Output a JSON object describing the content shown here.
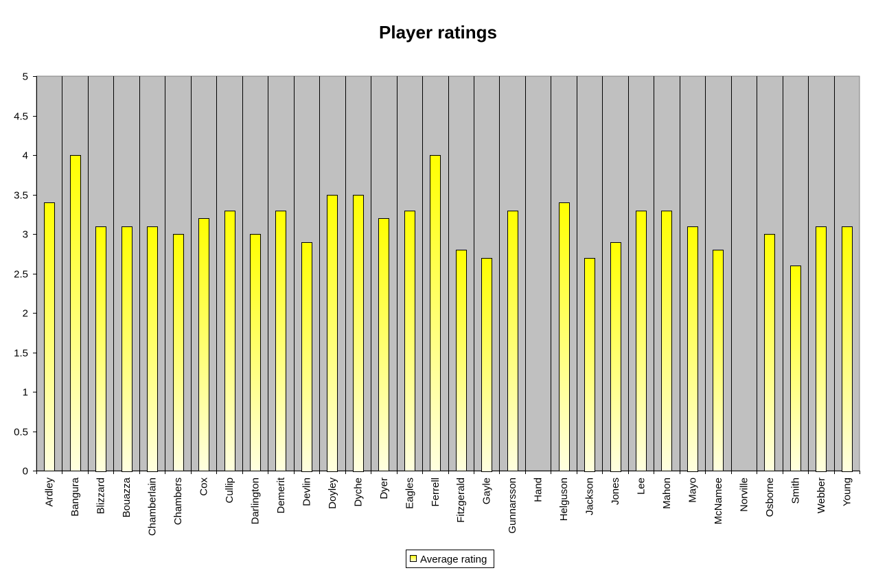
{
  "chart_data": {
    "type": "bar",
    "title": "Player ratings",
    "xlabel": "",
    "ylabel": "",
    "ylim": [
      0,
      5
    ],
    "ytick_step": 0.5,
    "grid": true,
    "legend_position": "bottom",
    "plot_background": "#c0c0c0",
    "bar_color_top": "#ffff00",
    "bar_color_bottom": "#ffffe0",
    "bar_outline": "#000000",
    "categories": [
      "Ardley",
      "Bangura",
      "Blizzard",
      "Bouazza",
      "Chamberlain",
      "Chambers",
      "Cox",
      "Cullip",
      "Darlington",
      "Demerit",
      "Devlin",
      "Doyley",
      "Dyche",
      "Dyer",
      "Eagles",
      "Ferrell",
      "Fitzgerald",
      "Gayle",
      "Gunnarsson",
      "Hand",
      "Helguson",
      "Jackson",
      "Jones",
      "Lee",
      "Mahon",
      "Mayo",
      "McNamee",
      "Norville",
      "Osborne",
      "Smith",
      "Webber",
      "Young"
    ],
    "series": [
      {
        "name": "Average rating",
        "values": [
          3.4,
          4.0,
          3.1,
          3.1,
          3.1,
          3.0,
          3.2,
          3.3,
          3.0,
          3.3,
          2.9,
          3.5,
          3.5,
          3.2,
          3.3,
          4.0,
          2.8,
          2.7,
          3.3,
          null,
          3.4,
          2.7,
          2.9,
          3.3,
          3.3,
          3.1,
          2.8,
          null,
          3.0,
          2.6,
          3.1,
          3.1
        ]
      }
    ]
  }
}
